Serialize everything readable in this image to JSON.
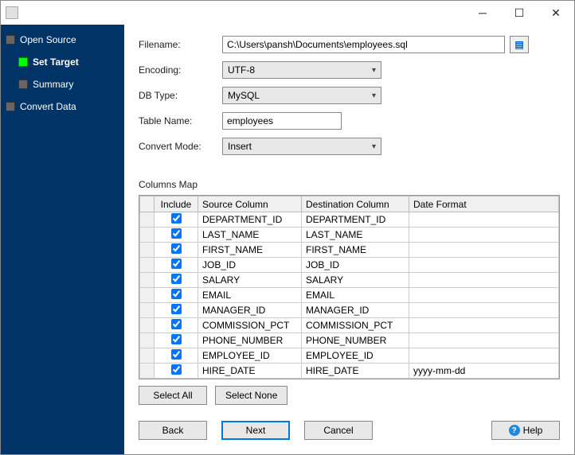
{
  "window": {
    "title": ""
  },
  "nav": {
    "items": [
      {
        "label": "Open Source",
        "indent": false,
        "active": false
      },
      {
        "label": "Set Target",
        "indent": true,
        "active": true
      },
      {
        "label": "Summary",
        "indent": true,
        "active": false
      },
      {
        "label": "Convert Data",
        "indent": false,
        "active": false
      }
    ]
  },
  "form": {
    "filename_label": "Filename:",
    "filename_value": "C:\\Users\\pansh\\Documents\\employees.sql",
    "encoding_label": "Encoding:",
    "encoding_value": "UTF-8",
    "dbtype_label": "DB Type:",
    "dbtype_value": "MySQL",
    "tablename_label": "Table Name:",
    "tablename_value": "employees",
    "convertmode_label": "Convert Mode:",
    "convertmode_value": "Insert"
  },
  "columns_map": {
    "label": "Columns Map",
    "headers": {
      "include": "Include",
      "source": "Source Column",
      "dest": "Destination Column",
      "datefmt": "Date Format"
    },
    "rows": [
      {
        "include": true,
        "source": "DEPARTMENT_ID",
        "dest": "DEPARTMENT_ID",
        "datefmt": ""
      },
      {
        "include": true,
        "source": "LAST_NAME",
        "dest": "LAST_NAME",
        "datefmt": ""
      },
      {
        "include": true,
        "source": "FIRST_NAME",
        "dest": "FIRST_NAME",
        "datefmt": ""
      },
      {
        "include": true,
        "source": "JOB_ID",
        "dest": "JOB_ID",
        "datefmt": ""
      },
      {
        "include": true,
        "source": "SALARY",
        "dest": "SALARY",
        "datefmt": ""
      },
      {
        "include": true,
        "source": "EMAIL",
        "dest": "EMAIL",
        "datefmt": ""
      },
      {
        "include": true,
        "source": "MANAGER_ID",
        "dest": "MANAGER_ID",
        "datefmt": ""
      },
      {
        "include": true,
        "source": "COMMISSION_PCT",
        "dest": "COMMISSION_PCT",
        "datefmt": ""
      },
      {
        "include": true,
        "source": "PHONE_NUMBER",
        "dest": "PHONE_NUMBER",
        "datefmt": ""
      },
      {
        "include": true,
        "source": "EMPLOYEE_ID",
        "dest": "EMPLOYEE_ID",
        "datefmt": ""
      },
      {
        "include": true,
        "source": "HIRE_DATE",
        "dest": "HIRE_DATE",
        "datefmt": "yyyy-mm-dd"
      }
    ]
  },
  "buttons": {
    "select_all": "Select All",
    "select_none": "Select None",
    "back": "Back",
    "next": "Next",
    "cancel": "Cancel",
    "help": "Help"
  },
  "colors": {
    "sidebar_bg": "#003366",
    "active_box": "#00ff00",
    "primary_border": "#0078d7"
  }
}
